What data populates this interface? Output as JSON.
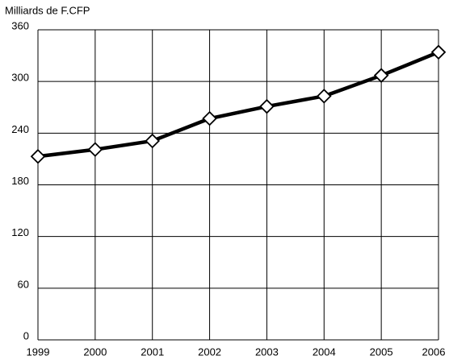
{
  "chart_data": {
    "type": "line",
    "ylabel": "Milliards de F.CFP",
    "x": [
      1999,
      2000,
      2001,
      2002,
      2003,
      2004,
      2005,
      2006
    ],
    "series": [
      {
        "name": "",
        "color": "#000000",
        "values": [
          213,
          221,
          231,
          257,
          271,
          283,
          307,
          334
        ]
      }
    ],
    "xlim": [
      1999,
      2006
    ],
    "xticks": [
      1999,
      2000,
      2001,
      2002,
      2003,
      2004,
      2005,
      2006
    ],
    "ylim": [
      0,
      360
    ],
    "yticks": [
      0,
      60,
      120,
      180,
      240,
      300,
      360
    ],
    "grid": true
  }
}
